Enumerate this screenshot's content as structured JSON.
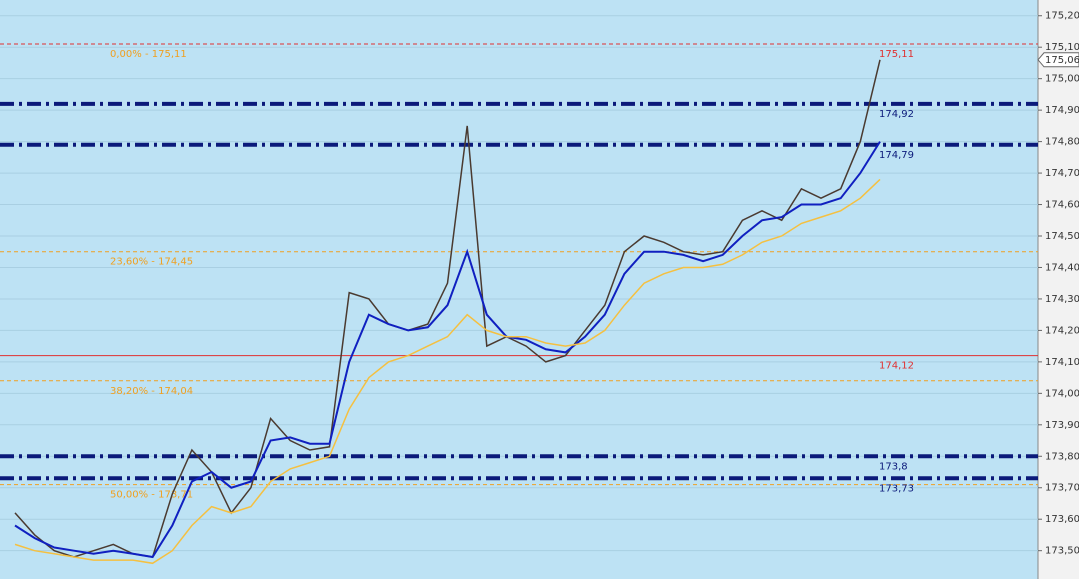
{
  "chart_data": {
    "type": "line",
    "ylim": [
      173.41,
      175.25
    ],
    "yticks": [
      {
        "value": 175.2,
        "label": "175,20"
      },
      {
        "value": 175.1,
        "label": "175,10"
      },
      {
        "value": 175.0,
        "label": "175,00"
      },
      {
        "value": 174.9,
        "label": "174,90"
      },
      {
        "value": 174.8,
        "label": "174,80"
      },
      {
        "value": 174.7,
        "label": "174,70"
      },
      {
        "value": 174.6,
        "label": "174,60"
      },
      {
        "value": 174.5,
        "label": "174,50"
      },
      {
        "value": 174.4,
        "label": "174,40"
      },
      {
        "value": 174.3,
        "label": "174,30"
      },
      {
        "value": 174.2,
        "label": "174,20"
      },
      {
        "value": 174.1,
        "label": "174,10"
      },
      {
        "value": 174.0,
        "label": "174,00"
      },
      {
        "value": 173.9,
        "label": "173,90"
      },
      {
        "value": 173.8,
        "label": "173,80"
      },
      {
        "value": 173.7,
        "label": "173,70"
      },
      {
        "value": 173.6,
        "label": "173,60"
      },
      {
        "value": 173.5,
        "label": "173,50"
      }
    ],
    "grid": true,
    "current_price": {
      "value": 175.06,
      "label": "175,06"
    },
    "levels": [
      {
        "value": 175.11,
        "label": "175,11",
        "color": "#e03030",
        "style": "dashed"
      },
      {
        "value": 174.92,
        "label": "174,92",
        "color": "#0b1a7a",
        "style": "dash-dot"
      },
      {
        "value": 174.79,
        "label": "174,79",
        "color": "#0b1a7a",
        "style": "dash-dot"
      },
      {
        "value": 174.12,
        "label": "174,12",
        "color": "#e03030",
        "style": "solid"
      },
      {
        "value": 173.8,
        "label": "173,8",
        "color": "#0b1a7a",
        "style": "dash-dot"
      },
      {
        "value": 173.73,
        "label": "173,73",
        "color": "#0b1a7a",
        "style": "dash-dot"
      }
    ],
    "fibonacci": [
      {
        "value": 175.11,
        "label": "0,00% - 175,11"
      },
      {
        "value": 174.45,
        "label": "23,60% - 174,45"
      },
      {
        "value": 174.04,
        "label": "38,20% - 174,04"
      },
      {
        "value": 173.71,
        "label": "50,00% - 173,71"
      }
    ],
    "fib_color": "#f0a020",
    "series": [
      {
        "color": "#4a3a30",
        "values": [
          173.62,
          173.55,
          173.5,
          173.48,
          173.5,
          173.52,
          173.49,
          173.48,
          173.68,
          173.82,
          173.75,
          173.62,
          173.7,
          173.92,
          173.85,
          173.82,
          173.83,
          174.32,
          174.3,
          174.22,
          174.2,
          174.22,
          174.35,
          174.85,
          174.15,
          174.18,
          174.15,
          174.1,
          174.12,
          174.2,
          174.28,
          174.45,
          174.5,
          174.48,
          174.45,
          174.44,
          174.45,
          174.55,
          174.58,
          174.55,
          174.65,
          174.62,
          174.65,
          174.8,
          175.06
        ]
      },
      {
        "color": "#1020c0",
        "values": [
          173.58,
          173.54,
          173.51,
          173.5,
          173.49,
          173.5,
          173.49,
          173.48,
          173.58,
          173.72,
          173.75,
          173.7,
          173.72,
          173.85,
          173.86,
          173.84,
          173.84,
          174.1,
          174.25,
          174.22,
          174.2,
          174.21,
          174.28,
          174.45,
          174.25,
          174.18,
          174.17,
          174.14,
          174.13,
          174.18,
          174.25,
          174.38,
          174.45,
          174.45,
          174.44,
          174.42,
          174.44,
          174.5,
          174.55,
          174.56,
          174.6,
          174.6,
          174.62,
          174.7,
          174.8
        ]
      },
      {
        "color": "#f5c040",
        "values": [
          173.52,
          173.5,
          173.49,
          173.48,
          173.47,
          173.47,
          173.47,
          173.46,
          173.5,
          173.58,
          173.64,
          173.62,
          173.64,
          173.72,
          173.76,
          173.78,
          173.8,
          173.95,
          174.05,
          174.1,
          174.12,
          174.15,
          174.18,
          174.25,
          174.2,
          174.18,
          174.18,
          174.16,
          174.15,
          174.16,
          174.2,
          174.28,
          174.35,
          174.38,
          174.4,
          174.4,
          174.41,
          174.44,
          174.48,
          174.5,
          174.54,
          174.56,
          174.58,
          174.62,
          174.68
        ]
      }
    ]
  }
}
